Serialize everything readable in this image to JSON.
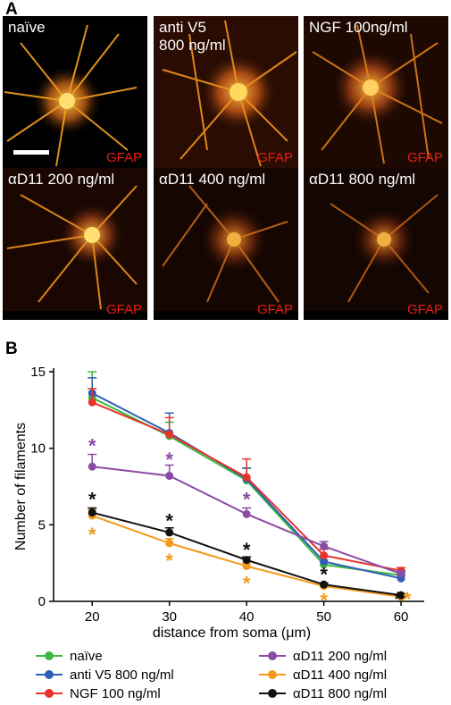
{
  "panel_a": {
    "letter": "A",
    "tiles": [
      {
        "label": "naïve",
        "stain": "GFAP"
      },
      {
        "label": "anti V5\n800 ng/ml",
        "stain": "GFAP"
      },
      {
        "label": "NGF 100ng/ml",
        "stain": "GFAP"
      },
      {
        "label": "αD11 200 ng/ml",
        "stain": "GFAP"
      },
      {
        "label": "αD11 400 ng/ml",
        "stain": "GFAP"
      },
      {
        "label": "αD11 800 ng/ml",
        "stain": "GFAP"
      }
    ]
  },
  "panel_b": {
    "letter": "B"
  },
  "chart_data": {
    "type": "line",
    "xlabel": "distance from soma (μm)",
    "ylabel": "Number of filaments",
    "x": [
      20,
      30,
      40,
      50,
      60
    ],
    "xlim": [
      15,
      63
    ],
    "ylim": [
      0,
      15
    ],
    "yticks": [
      0,
      5,
      10,
      15
    ],
    "grid": false,
    "legend_position": "bottom",
    "series": [
      {
        "name": "naïve",
        "color": "#3cb93c",
        "values": [
          13.3,
          10.8,
          7.9,
          2.4,
          1.7
        ],
        "errors": [
          1.7,
          0.9,
          0.8,
          0.3,
          0.2
        ]
      },
      {
        "name": "anti V5 800 ng/ml",
        "color": "#2e5fb8",
        "values": [
          13.6,
          11.0,
          8.0,
          2.6,
          1.5
        ],
        "errors": [
          1.0,
          1.3,
          0.7,
          0.3,
          0.2
        ]
      },
      {
        "name": "NGF 100 ng/ml",
        "color": "#e8322a",
        "values": [
          13.0,
          10.9,
          8.1,
          3.0,
          2.0
        ],
        "errors": [
          0.9,
          1.1,
          1.2,
          0.4,
          0.2
        ]
      },
      {
        "name": "αD11 200 ng/ml",
        "color": "#8a4aa6",
        "values": [
          8.8,
          8.2,
          5.7,
          3.6,
          1.8
        ],
        "errors": [
          0.8,
          0.7,
          0.4,
          0.3,
          0.2
        ]
      },
      {
        "name": "αD11 400 ng/ml",
        "color": "#f29a1c",
        "values": [
          5.6,
          3.8,
          2.3,
          1.0,
          0.3
        ],
        "errors": [
          0.4,
          0.3,
          0.2,
          0.1,
          0.1
        ]
      },
      {
        "name": "αD11 800 ng/ml",
        "color": "#111111",
        "values": [
          5.8,
          4.5,
          2.7,
          1.1,
          0.4
        ],
        "errors": [
          0.3,
          0.3,
          0.2,
          0.1,
          0.1
        ]
      }
    ],
    "annotations": [
      {
        "text": "*",
        "x": 20,
        "y": 10.3,
        "color": "#8a4aa6"
      },
      {
        "text": "*",
        "x": 30,
        "y": 9.4,
        "color": "#8a4aa6"
      },
      {
        "text": "*",
        "x": 40,
        "y": 6.8,
        "color": "#8a4aa6"
      },
      {
        "text": "*",
        "x": 20,
        "y": 6.8,
        "color": "#111111"
      },
      {
        "text": "*",
        "x": 30,
        "y": 5.4,
        "color": "#111111"
      },
      {
        "text": "*",
        "x": 40,
        "y": 3.5,
        "color": "#111111"
      },
      {
        "text": "*",
        "x": 50,
        "y": 1.9,
        "color": "#111111"
      },
      {
        "text": "*",
        "x": 59.6,
        "y": 0.3,
        "color": "#111111"
      },
      {
        "text": "*",
        "x": 20,
        "y": 4.5,
        "color": "#f29a1c"
      },
      {
        "text": "*",
        "x": 30,
        "y": 2.8,
        "color": "#f29a1c"
      },
      {
        "text": "*",
        "x": 40,
        "y": 1.3,
        "color": "#f29a1c"
      },
      {
        "text": "*",
        "x": 50,
        "y": 0.2,
        "color": "#f29a1c"
      },
      {
        "text": "*",
        "x": 60.8,
        "y": 0.3,
        "color": "#f29a1c"
      }
    ]
  }
}
